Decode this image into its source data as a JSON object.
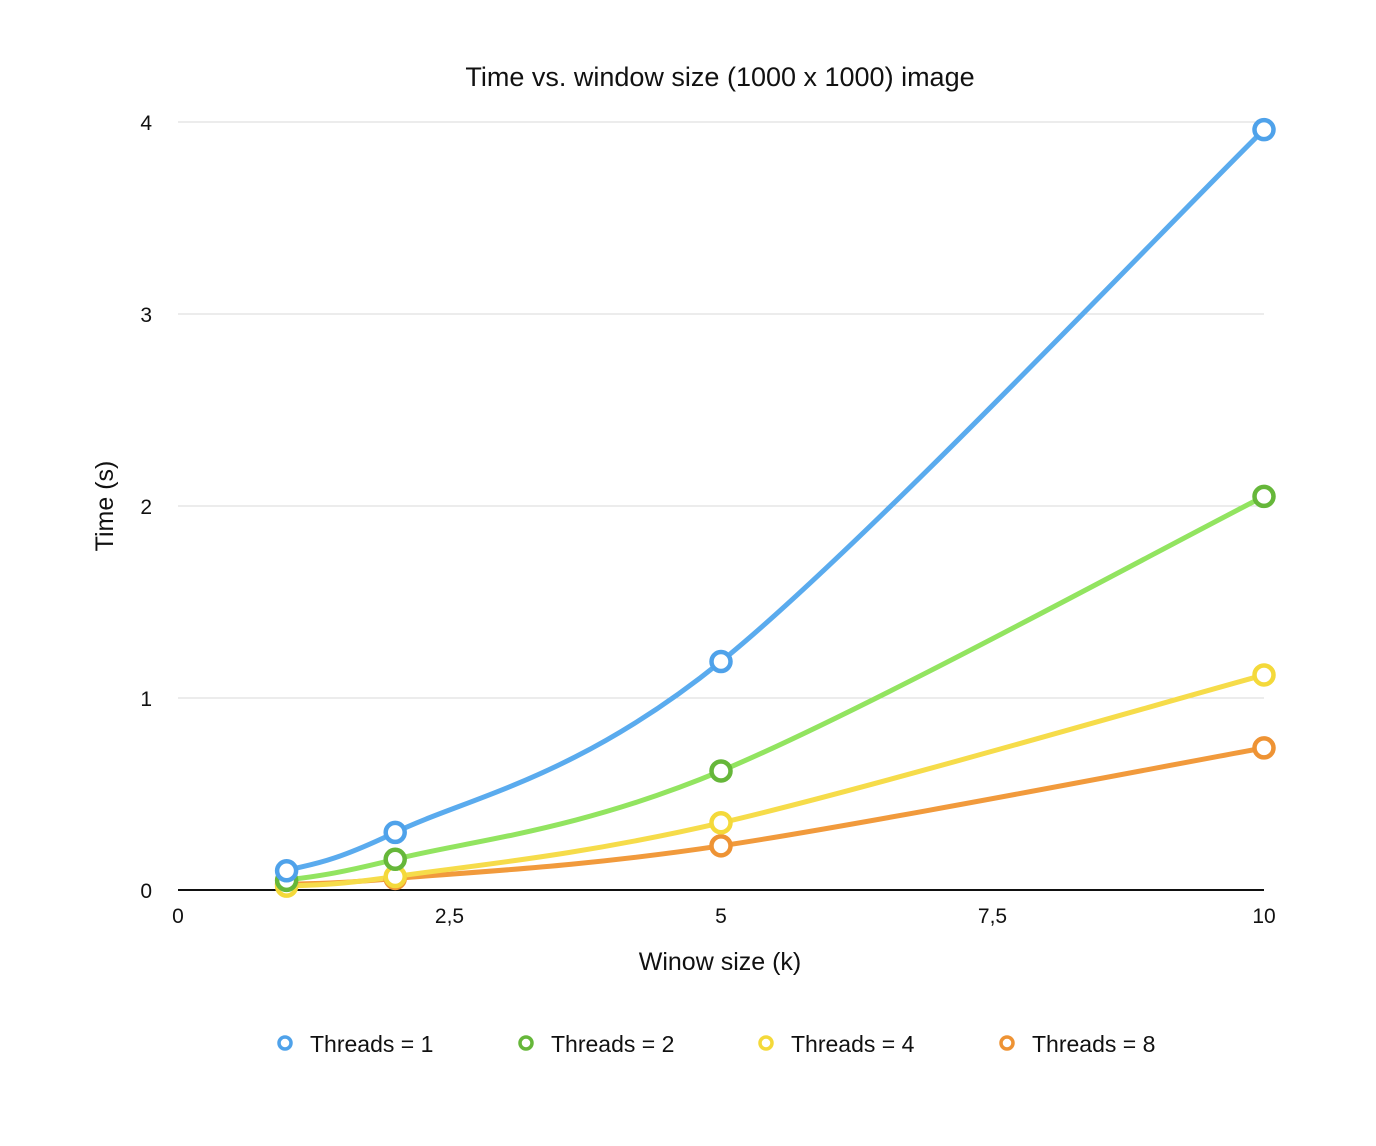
{
  "chart_data": {
    "type": "line",
    "title": "Time vs. window size (1000 x 1000) image",
    "xlabel": "Winow size (k)",
    "ylabel": "Time (s)",
    "xlim": [
      0,
      10
    ],
    "ylim": [
      0,
      4
    ],
    "xticks": [
      0,
      2.5,
      5,
      7.5,
      10
    ],
    "xtick_labels": [
      "0",
      "2,5",
      "5",
      "7,5",
      "10"
    ],
    "yticks": [
      0,
      1,
      2,
      3,
      4
    ],
    "ytick_labels": [
      "0",
      "1",
      "2",
      "3",
      "4"
    ],
    "grid": true,
    "legend_position": "bottom",
    "smooth": true,
    "series": [
      {
        "name": "Threads = 1",
        "color": "#5aabee",
        "marker_color": "#4fa2ea",
        "x": [
          1,
          2,
          5,
          10
        ],
        "y": [
          0.1,
          0.3,
          1.19,
          3.96
        ]
      },
      {
        "name": "Threads = 2",
        "color": "#92e460",
        "marker_color": "#66b73a",
        "x": [
          1,
          2,
          5,
          10
        ],
        "y": [
          0.05,
          0.16,
          0.62,
          2.05
        ]
      },
      {
        "name": "Threads = 4",
        "color": "#f6dc4a",
        "marker_color": "#f4d93a",
        "x": [
          1,
          2,
          5,
          10
        ],
        "y": [
          0.02,
          0.07,
          0.35,
          1.12
        ]
      },
      {
        "name": "Threads = 8",
        "color": "#f19a3c",
        "marker_color": "#ee9334",
        "x": [
          1,
          2,
          5,
          10
        ],
        "y": [
          0.03,
          0.06,
          0.23,
          0.74
        ]
      }
    ]
  }
}
